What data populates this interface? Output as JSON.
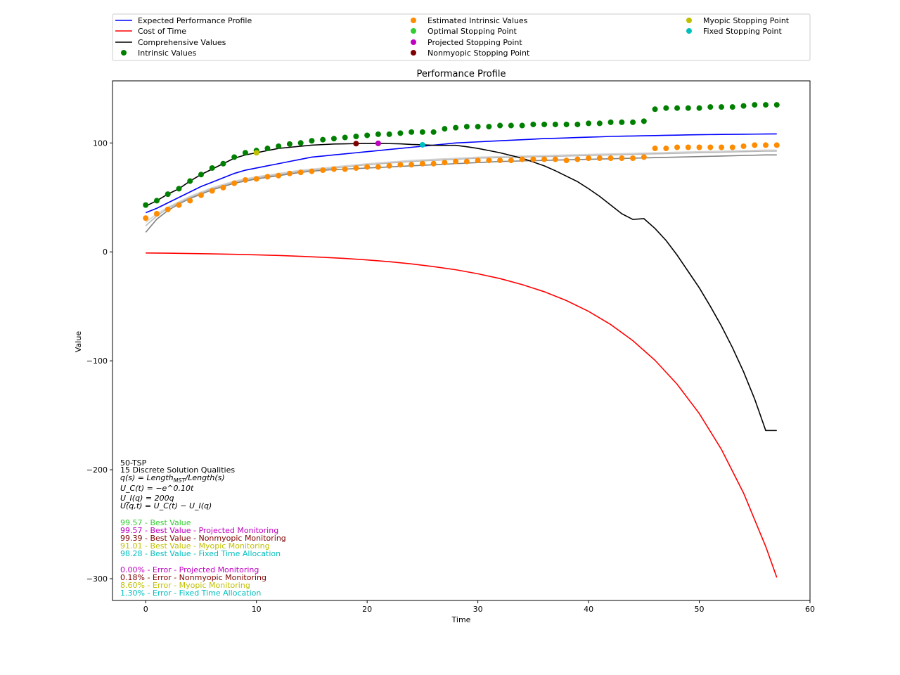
{
  "chart_data": {
    "type": "line",
    "title": "Performance Profile",
    "xlabel": "Time",
    "ylabel": "Value",
    "xlim": [
      -3,
      60
    ],
    "ylim": [
      -320,
      157
    ],
    "xticks": [
      0,
      10,
      20,
      30,
      40,
      50,
      60
    ],
    "yticks": [
      -300,
      -200,
      -100,
      0,
      100
    ],
    "xtick_labels": [
      "0",
      "10",
      "20",
      "30",
      "40",
      "50",
      "60"
    ],
    "ytick_labels": [
      "−300",
      "−200",
      "−100",
      "0",
      "100"
    ],
    "grid": false,
    "legend_placement": "top",
    "legend_items": [
      {
        "label": "Expected Performance Profile",
        "kind": "line",
        "color": "#0000ff"
      },
      {
        "label": "Cost of Time",
        "kind": "line",
        "color": "#ff0000"
      },
      {
        "label": "Comprehensive Values",
        "kind": "line",
        "color": "#000000"
      },
      {
        "label": "Intrinsic Values",
        "kind": "marker",
        "color": "#008000"
      },
      {
        "label": "Estimated Intrinsic Values",
        "kind": "marker",
        "color": "#ff8c00"
      },
      {
        "label": "Optimal Stopping Point",
        "kind": "marker",
        "color": "#32cd32"
      },
      {
        "label": "Projected Stopping Point",
        "kind": "marker",
        "color": "#c000c0"
      },
      {
        "label": "Nonmyopic Stopping Point",
        "kind": "marker",
        "color": "#800000"
      },
      {
        "label": "Myopic Stopping Point",
        "kind": "marker",
        "color": "#c0c000"
      },
      {
        "label": "Fixed Stopping Point",
        "kind": "marker",
        "color": "#00bfbf"
      }
    ],
    "series": [
      {
        "name": "Expected Performance Profile",
        "kind": "line",
        "color": "#0000ff",
        "x": [
          0,
          1,
          2,
          3,
          4,
          5,
          6,
          7,
          8,
          9,
          10,
          11,
          12,
          13,
          14,
          15,
          16,
          17,
          18,
          19,
          20,
          21,
          22,
          23,
          24,
          25,
          26,
          27,
          28,
          29,
          30,
          31,
          32,
          33,
          34,
          35,
          36,
          37,
          38,
          39,
          40,
          41,
          42,
          43,
          44,
          45,
          46,
          47,
          48,
          49,
          50,
          51,
          52,
          53,
          54,
          55,
          56,
          57
        ],
        "y": [
          36,
          40,
          45,
          50,
          55,
          60,
          64,
          68,
          72,
          75,
          77,
          79,
          81,
          83,
          85,
          87,
          88,
          89,
          90,
          91,
          92,
          93,
          94,
          95,
          96,
          97,
          98,
          99,
          100,
          100.5,
          101,
          101.5,
          102,
          102.5,
          103,
          103.5,
          104,
          104.3,
          104.6,
          105,
          105.3,
          105.6,
          106,
          106.2,
          106.4,
          106.6,
          106.8,
          107,
          107.2,
          107.4,
          107.6,
          107.7,
          107.8,
          107.9,
          108,
          108.1,
          108.2,
          108.3
        ]
      },
      {
        "name": "Cost of Time",
        "kind": "line",
        "color": "#ff0000",
        "x": [
          0,
          2,
          4,
          6,
          8,
          10,
          12,
          14,
          16,
          18,
          20,
          22,
          24,
          26,
          28,
          30,
          32,
          34,
          36,
          38,
          40,
          42,
          44,
          46,
          48,
          50,
          52,
          54,
          56,
          57
        ],
        "y": [
          -1.0,
          -1.2,
          -1.5,
          -1.8,
          -2.2,
          -2.7,
          -3.3,
          -4.1,
          -5.0,
          -6.0,
          -7.4,
          -9.0,
          -11.0,
          -13.5,
          -16.4,
          -20.1,
          -24.5,
          -30.0,
          -36.6,
          -44.7,
          -54.6,
          -66.7,
          -81.5,
          -99.5,
          -121.5,
          -148.4,
          -181.3,
          -221.4,
          -270.4,
          -298.9
        ]
      },
      {
        "name": "Comprehensive Values",
        "kind": "line",
        "color": "#000000",
        "x": [
          0,
          1,
          2,
          3,
          4,
          5,
          6,
          7,
          8,
          9,
          10,
          11,
          12,
          13,
          14,
          15,
          16,
          17,
          18,
          19,
          20,
          21,
          22,
          23,
          24,
          25,
          26,
          27,
          28,
          29,
          30,
          31,
          32,
          33,
          34,
          35,
          36,
          37,
          38,
          39,
          40,
          41,
          42,
          43,
          44,
          45,
          46,
          47,
          48,
          49,
          50,
          51,
          52,
          53,
          54,
          55,
          56,
          57
        ],
        "y": [
          42,
          47,
          53,
          58,
          65,
          71,
          76,
          81,
          86,
          89,
          91,
          93,
          95,
          96,
          97,
          98,
          98.5,
          99,
          99.2,
          99.4,
          99.5,
          99.6,
          99.4,
          99.2,
          98.6,
          98.3,
          97.8,
          97.8,
          97.8,
          96.5,
          95,
          93,
          91,
          88.5,
          86,
          82.5,
          79,
          74.5,
          69.5,
          64.5,
          58,
          51,
          43,
          35,
          29.8,
          30.5,
          21.5,
          10.5,
          -3,
          -18,
          -33,
          -50,
          -68,
          -88,
          -110,
          -135,
          -164,
          -164
        ]
      },
      {
        "name": "Intrinsic Values",
        "kind": "scatter",
        "color": "#008000",
        "x": [
          0,
          1,
          2,
          3,
          4,
          5,
          6,
          7,
          8,
          9,
          10,
          11,
          12,
          13,
          14,
          15,
          16,
          17,
          18,
          19,
          20,
          21,
          22,
          23,
          24,
          25,
          26,
          27,
          28,
          29,
          30,
          31,
          32,
          33,
          34,
          35,
          36,
          37,
          38,
          39,
          40,
          41,
          42,
          43,
          44,
          45,
          46,
          47,
          48,
          49,
          50,
          51,
          52,
          53,
          54,
          55,
          56,
          57
        ],
        "y": [
          43,
          47,
          53,
          58,
          65,
          71,
          77,
          81,
          87,
          91,
          93,
          95,
          97,
          99,
          100,
          102,
          103,
          104,
          105,
          106,
          107,
          108,
          108,
          109,
          110,
          110,
          110,
          113,
          114,
          115,
          115,
          115,
          116,
          116,
          116,
          117,
          117,
          117,
          117,
          117,
          118,
          118,
          119,
          119,
          119,
          120,
          131,
          132,
          132,
          132,
          132,
          133,
          133,
          133,
          134,
          135,
          135,
          135
        ]
      },
      {
        "name": "Estimated Intrinsic Values",
        "kind": "scatter",
        "color": "#ff8c00",
        "x": [
          0,
          1,
          2,
          3,
          4,
          5,
          6,
          7,
          8,
          9,
          10,
          11,
          12,
          13,
          14,
          15,
          16,
          17,
          18,
          19,
          20,
          21,
          22,
          23,
          24,
          25,
          26,
          27,
          28,
          29,
          30,
          31,
          32,
          33,
          34,
          35,
          36,
          37,
          38,
          39,
          40,
          41,
          42,
          43,
          44,
          45,
          46,
          47,
          48,
          49,
          50,
          51,
          52,
          53,
          54,
          55,
          56,
          57
        ],
        "y": [
          31,
          35,
          39,
          43,
          47,
          52,
          56,
          59,
          63,
          66,
          67,
          69,
          70,
          72,
          73,
          74,
          75,
          76,
          76,
          77,
          78,
          78,
          79,
          80,
          80,
          81,
          81,
          82,
          83,
          83,
          84,
          84,
          84,
          84,
          85,
          85,
          85,
          85,
          84,
          85,
          86,
          86,
          86,
          86,
          86,
          87,
          95,
          95,
          96,
          96,
          96,
          96,
          96,
          96,
          97,
          98,
          98,
          98
        ]
      },
      {
        "name": "",
        "kind": "line",
        "color": "#808080",
        "x": [
          0,
          1,
          2,
          3,
          4,
          5,
          6,
          8,
          10,
          12,
          14,
          16,
          18,
          20,
          22,
          24,
          26,
          28,
          30,
          32,
          34,
          36,
          38,
          40,
          42,
          44,
          46,
          48,
          50,
          52,
          54,
          56,
          57
        ],
        "y": [
          18,
          30,
          38,
          44,
          49,
          53,
          57,
          63,
          67,
          70,
          73,
          75,
          76,
          77,
          78,
          79,
          80,
          81,
          82,
          83,
          83.5,
          84,
          84.5,
          85,
          85.5,
          86,
          86.5,
          87,
          87.5,
          88,
          88.5,
          89,
          89
        ]
      },
      {
        "name": "",
        "kind": "line",
        "color": "#b8b8b8",
        "x": [
          0,
          1,
          2,
          3,
          4,
          5,
          6,
          8,
          10,
          12,
          14,
          16,
          18,
          20,
          22,
          24,
          26,
          28,
          30,
          32,
          34,
          36,
          38,
          40,
          42,
          44,
          46,
          48,
          50,
          52,
          54,
          56,
          57
        ],
        "y": [
          24,
          33,
          40,
          45,
          50,
          54,
          58,
          64,
          68,
          71,
          74,
          76,
          78,
          80,
          81.5,
          83,
          84,
          85,
          86,
          86.5,
          87,
          87.5,
          88,
          88.5,
          89,
          89.5,
          90,
          90.5,
          91,
          91.5,
          92,
          92.5,
          92.5
        ]
      },
      {
        "name": "",
        "kind": "line",
        "color": "#d3d3d3",
        "x": [
          0,
          1,
          2,
          3,
          4,
          5,
          6,
          8,
          10,
          12,
          14,
          16,
          18,
          20,
          22,
          24,
          26,
          28,
          30,
          32,
          34,
          36,
          38,
          40,
          42,
          44,
          46,
          48,
          50,
          52,
          54,
          56,
          57
        ],
        "y": [
          27,
          35,
          41,
          46,
          51,
          55,
          59,
          65,
          69,
          72,
          75,
          77,
          79,
          81,
          82.5,
          84,
          85,
          86,
          87,
          87.5,
          88,
          88.5,
          89,
          89.5,
          90,
          90.5,
          91,
          91.5,
          92,
          92.5,
          93,
          93.5,
          93.5
        ]
      }
    ],
    "stopping_points": [
      {
        "name": "Myopic Stopping Point",
        "x": 10,
        "y": 91.0,
        "color": "#c0c000"
      },
      {
        "name": "Nonmyopic Stopping Point",
        "x": 19,
        "y": 99.4,
        "color": "#800000"
      },
      {
        "name": "Optimal Stopping Point",
        "x": 21,
        "y": 99.6,
        "color": "#32cd32"
      },
      {
        "name": "Projected Stopping Point",
        "x": 21,
        "y": 99.6,
        "color": "#c000c0"
      },
      {
        "name": "Fixed Stopping Point",
        "x": 25,
        "y": 98.3,
        "color": "#00bfbf"
      }
    ],
    "annotations": {
      "problem": "50-TSP",
      "qualities": "15 Discrete Solution Qualities",
      "formulas": [
        {
          "label": "q(s)",
          "expr": "Length",
          "sub": "MST",
          "rest": "/Length(s)"
        },
        {
          "label": "U_C(t)",
          "expr": "−e^0.10t"
        },
        {
          "label": "U_I(q)",
          "expr": "200q"
        },
        {
          "label": "U(q,t)",
          "expr": "U_C(t) − U_I(q)"
        }
      ],
      "best_values": [
        {
          "text": "99.57 - Best Value",
          "color": "#32cd32"
        },
        {
          "text": "99.57 - Best Value - Projected Monitoring",
          "color": "#c000c0"
        },
        {
          "text": "99.39 - Best Value - Nonmyopic Monitoring",
          "color": "#800000"
        },
        {
          "text": "91.01 - Best Value - Myopic Monitoring",
          "color": "#c0c000"
        },
        {
          "text": "98.28 - Best Value - Fixed Time Allocation",
          "color": "#00bfbf"
        }
      ],
      "errors": [
        {
          "text": "0.00% - Error - Projected Monitoring",
          "color": "#c000c0"
        },
        {
          "text": "0.18% - Error - Nonmyopic Monitoring",
          "color": "#800000"
        },
        {
          "text": "8.60% - Error - Myopic Monitoring",
          "color": "#c0c000"
        },
        {
          "text": "1.30% - Error - Fixed Time Allocation",
          "color": "#00bfbf"
        }
      ]
    }
  }
}
